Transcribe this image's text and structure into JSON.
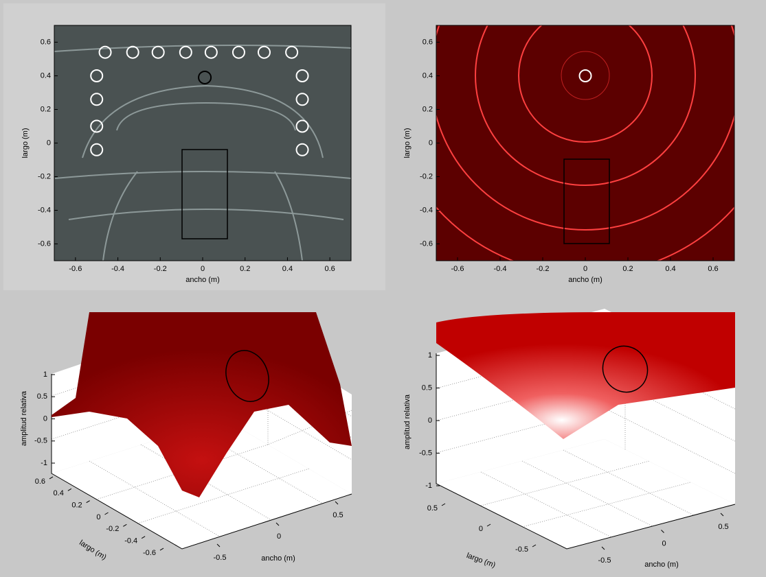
{
  "chart_data": [
    {
      "type": "heatmap",
      "xlabel": "ancho (m)",
      "ylabel": "largo (m)",
      "xlim": [
        -0.7,
        0.7
      ],
      "ylim": [
        -0.7,
        0.7
      ],
      "xticks": [
        -0.6,
        -0.4,
        -0.2,
        0,
        0.2,
        0.4,
        0.6
      ],
      "yticks": [
        -0.6,
        -0.4,
        -0.2,
        0,
        0.2,
        0.4,
        0.6
      ],
      "series": [
        {
          "color": "#ffffff",
          "x": [
            -0.46,
            -0.33,
            -0.21,
            -0.08,
            0.04,
            0.17,
            0.29,
            0.42,
            -0.5,
            -0.5,
            -0.5,
            -0.5,
            0.47,
            0.47,
            0.47,
            0.47
          ],
          "y": [
            0.54,
            0.54,
            0.54,
            0.54,
            0.54,
            0.54,
            0.54,
            0.54,
            0.4,
            0.26,
            0.1,
            -0.04,
            0.4,
            0.26,
            0.1,
            -0.04
          ]
        },
        {
          "color": "#000000",
          "x": [
            0.01
          ],
          "y": [
            0.39
          ]
        }
      ]
    },
    {
      "type": "heatmap",
      "xlabel": "ancho (m)",
      "ylabel": "largo (m)",
      "xlim": [
        -0.7,
        0.7
      ],
      "ylim": [
        -0.7,
        0.7
      ],
      "xticks": [
        -0.6,
        -0.4,
        -0.2,
        0,
        0.2,
        0.4,
        0.6
      ],
      "yticks": [
        -0.6,
        -0.4,
        -0.2,
        0,
        0.2,
        0.4,
        0.6
      ],
      "series": [
        {
          "color": "#ffffff",
          "x": [
            0
          ],
          "y": [
            0.4
          ]
        }
      ]
    },
    {
      "type": "surface",
      "xlabel": "ancho (m)",
      "ylabel": "largo (m)",
      "zlabel": "amplitud relativa",
      "xlim": [
        -0.7,
        0.7
      ],
      "ylim": [
        -0.7,
        0.7
      ],
      "zlim": [
        -1,
        1
      ],
      "xticks": [
        -0.5,
        0,
        0.5
      ],
      "yticks": [
        -0.6,
        -0.4,
        -0.2,
        0,
        0.2,
        0.4,
        0.6
      ],
      "zticks": [
        -1,
        -0.5,
        0,
        0.5,
        1
      ]
    },
    {
      "type": "surface",
      "xlabel": "ancho (m)",
      "ylabel": "largo (m)",
      "zlabel": "amplitud relativa",
      "xlim": [
        -0.7,
        0.7
      ],
      "ylim": [
        -0.7,
        0.7
      ],
      "zlim": [
        -1,
        1
      ],
      "xticks": [
        -0.5,
        0,
        0.5
      ],
      "yticks": [
        -0.5,
        0,
        0.5
      ],
      "zticks": [
        -1,
        -0.5,
        0,
        0.5,
        1
      ]
    }
  ]
}
